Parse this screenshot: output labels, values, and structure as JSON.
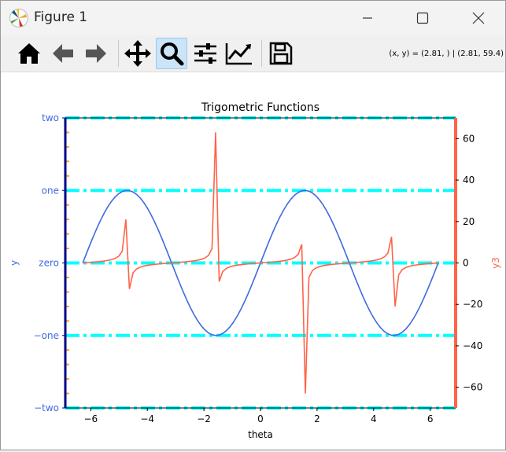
{
  "window": {
    "title": "Figure 1",
    "controls": [
      "minimize",
      "maximize",
      "close"
    ]
  },
  "toolbar": {
    "tools": [
      {
        "name": "home",
        "icon": "home-icon",
        "active": false
      },
      {
        "name": "back",
        "icon": "arrow-left-icon",
        "active": false
      },
      {
        "name": "forward",
        "icon": "arrow-right-icon",
        "active": false
      },
      {
        "name": "pan",
        "icon": "move-icon",
        "active": false
      },
      {
        "name": "zoom",
        "icon": "magnifier-icon",
        "active": true
      },
      {
        "name": "subplots",
        "icon": "sliders-icon",
        "active": false
      },
      {
        "name": "customize",
        "icon": "chart-line-icon",
        "active": false
      },
      {
        "name": "save",
        "icon": "floppy-disk-icon",
        "active": false
      }
    ],
    "coords_text": "(x, y) = (2.81, ) | (2.81, 59.4)"
  },
  "colors": {
    "sin": "#4169e1",
    "tan": "#ff6347",
    "hline": "#00ffff",
    "minor_tick": "#ffa500",
    "left_spine": "#00008b",
    "right_spine": "#ff6347",
    "left_tick_label": "#4169e1"
  },
  "chart_data": {
    "type": "line",
    "title": "Trigometric Functions",
    "xlabel": "theta",
    "ylabel": "y",
    "y2label": "y3",
    "xlim": [
      -6.9,
      6.9
    ],
    "ylim": [
      -2,
      2
    ],
    "y2lim": [
      -70,
      70
    ],
    "xticks": [
      -6,
      -4,
      -2,
      0,
      2,
      4,
      6
    ],
    "xtick_labels": [
      "−6",
      "−4",
      "−2",
      "0",
      "2",
      "4",
      "6"
    ],
    "yticks": [
      -2,
      -1,
      0,
      1,
      2
    ],
    "ytick_labels": [
      "−two",
      "−one",
      "zero",
      "one",
      "two"
    ],
    "y2ticks": [
      -60,
      -40,
      -20,
      0,
      20,
      40,
      60
    ],
    "y2tick_labels": [
      "−60",
      "−40",
      "−20",
      "0",
      "20",
      "40",
      "60"
    ],
    "hlines": [
      -2,
      -1,
      0,
      1,
      2
    ],
    "grid": false,
    "series": [
      {
        "function": "sin",
        "axis": "left",
        "x_range": [
          -6.2832,
          6.2832
        ],
        "samples": 100
      },
      {
        "function": "tan",
        "axis": "right",
        "x_range": [
          -6.2832,
          6.2832
        ],
        "samples": 100
      }
    ]
  }
}
